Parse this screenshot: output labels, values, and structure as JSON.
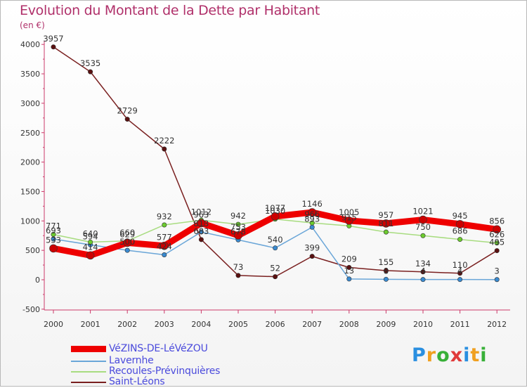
{
  "header": {
    "title": "Evolution du Montant de la Dette par Habitant",
    "subtitle": "(en €)"
  },
  "logo": {
    "letters": [
      "P",
      "r",
      "o",
      "x",
      "i",
      "t",
      "i"
    ],
    "colors": [
      "#2a8fe0",
      "#f0a020",
      "#38b038",
      "#e03a3a",
      "#2a8fe0",
      "#f0a020",
      "#38b038"
    ]
  },
  "chart_data": {
    "type": "line",
    "title": "Evolution du Montant de la Dette par Habitant",
    "subtitle": "(en €)",
    "xlabel": "",
    "ylabel": "",
    "categories": [
      "2000",
      "2001",
      "2002",
      "2003",
      "2004",
      "2005",
      "2006",
      "2007",
      "2008",
      "2009",
      "2010",
      "2011",
      "2012"
    ],
    "ylim": [
      -500,
      4000
    ],
    "yticks": [
      "-500",
      "0",
      "500",
      "1000",
      "1500",
      "2000",
      "2500",
      "3000",
      "3500",
      "4000"
    ],
    "grid": false,
    "legend_position": "bottom-left",
    "series": [
      {
        "name": "VéZINS-DE-LéVéZOU",
        "color": "#ee0000",
        "marker": "#cc0000",
        "width": 9,
        "values": [
          533,
          414,
          629,
          577,
          963,
          753,
          1077,
          1146,
          1005,
          957,
          1021,
          945,
          856
        ],
        "labels": [
          "533",
          "414",
          "629",
          "577",
          "963",
          "753",
          "1077",
          "1146",
          "1005",
          "957",
          "1021",
          "945",
          "856"
        ]
      },
      {
        "name": "Lavernhe",
        "color": "#6aa6d8",
        "marker": "#3a8ad0",
        "width": 1.5,
        "values": [
          693,
          594,
          500,
          424,
          813,
          678,
          540,
          893,
          13,
          8,
          4,
          4,
          3
        ],
        "labels": [
          "693",
          "594",
          "500",
          "424",
          "813",
          "678",
          "540",
          "893",
          "13",
          "8",
          "4",
          "4",
          "3"
        ]
      },
      {
        "name": "Recoules-Prévinquières",
        "color": "#a8dc80",
        "marker": "#6ccc2e",
        "width": 1.5,
        "values": [
          771,
          640,
          660,
          932,
          1012,
          942,
          1030,
          966,
          915,
          811,
          750,
          686,
          626
        ],
        "labels": [
          "771",
          "640",
          "660",
          "932",
          "1012",
          "942",
          "1030",
          "966",
          "915",
          "811",
          "750",
          "686",
          "626"
        ]
      },
      {
        "name": "Saint-Léons",
        "color": "#7a2020",
        "marker": "#5a1010",
        "width": 1.5,
        "values": [
          3957,
          3535,
          2729,
          2222,
          683,
          73,
          52,
          399,
          209,
          155,
          134,
          110,
          495
        ],
        "labels": [
          "3957",
          "3535",
          "2729",
          "2222",
          "683",
          "73",
          "52",
          "399",
          "209",
          "155",
          "134",
          "110",
          "495"
        ]
      }
    ]
  }
}
